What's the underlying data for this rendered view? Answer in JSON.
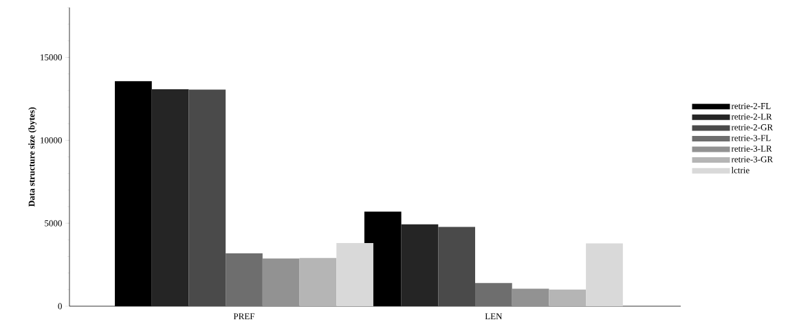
{
  "chart_data": {
    "type": "bar",
    "ylabel": "Data structure size (bytes)",
    "categories": [
      "PREF",
      "LEN"
    ],
    "series": [
      {
        "name": "retrie-2-FL",
        "color": "#000000",
        "values": [
          13560,
          5700
        ]
      },
      {
        "name": "retrie-2-LR",
        "color": "#252525",
        "values": [
          13080,
          4930
        ]
      },
      {
        "name": "retrie-2-GR",
        "color": "#4a4a4a",
        "values": [
          13060,
          4780
        ]
      },
      {
        "name": "retrie-3-FL",
        "color": "#6e6e6e",
        "values": [
          3190,
          1400
        ]
      },
      {
        "name": "retrie-3-LR",
        "color": "#929292",
        "values": [
          2880,
          1050
        ]
      },
      {
        "name": "retrie-3-GR",
        "color": "#b5b5b5",
        "values": [
          2910,
          1000
        ]
      },
      {
        "name": "lctrie",
        "color": "#d9d9d9",
        "values": [
          3810,
          3790
        ]
      }
    ],
    "ylim": [
      0,
      18000
    ],
    "yticks": [
      0,
      5000,
      10000,
      15000
    ],
    "grid": false,
    "legend": "right"
  }
}
